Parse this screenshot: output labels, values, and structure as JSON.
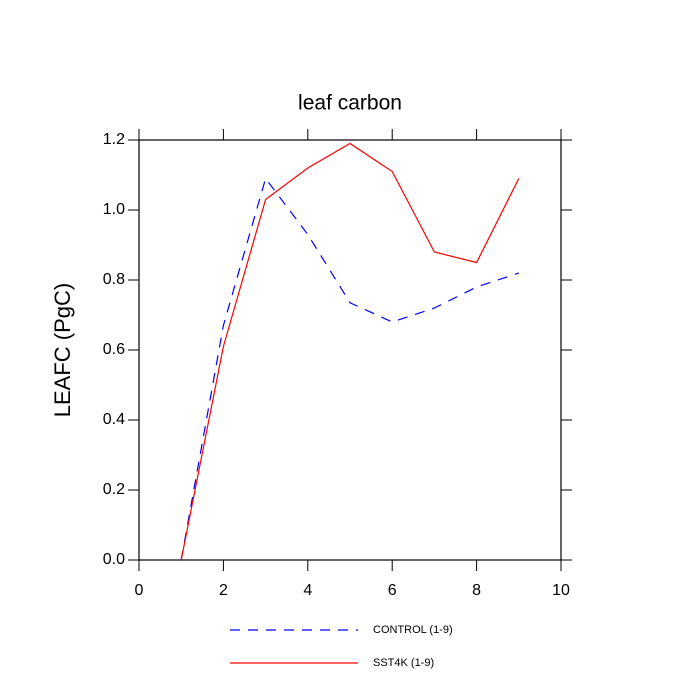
{
  "chart_data": {
    "type": "line",
    "title": "leaf carbon",
    "y_label": "LEAFC  (PgC)",
    "x": [
      1,
      2,
      3,
      4,
      5,
      6,
      7,
      8,
      9
    ],
    "series": [
      {
        "name": "CONTROL (1-9)",
        "color": "#0000ff",
        "linestyle": "dashed",
        "values": [
          0,
          0.67,
          1.09,
          0.93,
          0.735,
          0.68,
          0.72,
          0.78,
          0.82
        ]
      },
      {
        "name": "SST4K (1-9)",
        "color": "#ff0000",
        "linestyle": "solid",
        "values": [
          0,
          0.61,
          1.03,
          1.12,
          1.19,
          1.11,
          0.88,
          0.85,
          1.09
        ]
      }
    ],
    "xlim": [
      0,
      10
    ],
    "xticks": [
      0,
      2,
      4,
      6,
      8,
      10
    ],
    "ylim": [
      0,
      1.2
    ],
    "yticks": [
      {
        "value": 0,
        "label": "0.0"
      },
      0.2,
      0.4,
      0.6,
      0.8,
      {
        "value": 1,
        "label": "1.0"
      },
      1.2
    ],
    "legend": "bottom"
  }
}
